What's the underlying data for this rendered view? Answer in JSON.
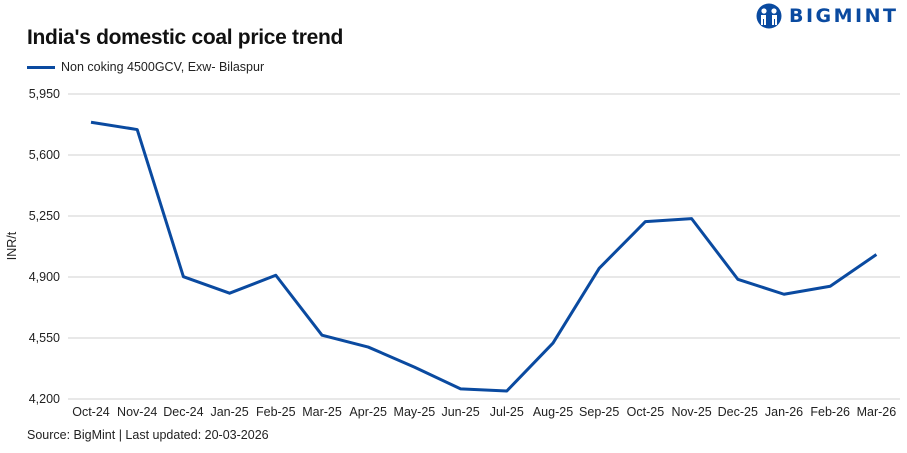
{
  "chart_data": {
    "type": "line",
    "title": "India's domestic coal price trend",
    "ylabel": "INR/t",
    "xlabel": "",
    "ylim": [
      4200,
      5950
    ],
    "yticks": [
      4200,
      4550,
      4900,
      5250,
      5600,
      5950
    ],
    "ytick_labels": [
      "4,200",
      "4,550",
      "4,900",
      "5,250",
      "5,600",
      "5,950"
    ],
    "grid": "horizontal",
    "legend_position": "top-left",
    "categories": [
      "Oct-24",
      "Nov-24",
      "Dec-24",
      "Jan-25",
      "Feb-25",
      "Mar-25",
      "Apr-25",
      "May-25",
      "Jun-25",
      "Jul-25",
      "Aug-25",
      "Sep-25",
      "Oct-25",
      "Nov-25",
      "Dec-25",
      "Jan-26",
      "Feb-26",
      "Mar-26"
    ],
    "series": [
      {
        "name": "Non coking 4500GCV, Exw- Bilaspur",
        "color": "#0a4aa0",
        "values": [
          5788,
          5746,
          4902,
          4807,
          4910,
          4566,
          4498,
          4383,
          4258,
          4246,
          4521,
          4950,
          5218,
          5235,
          4887,
          4801,
          4847,
          5029
        ]
      }
    ]
  },
  "logo": {
    "text": "BIGMINT",
    "color": "#0a4aa0"
  },
  "source": "Source: BigMint | Last updated: 20-03-2026"
}
